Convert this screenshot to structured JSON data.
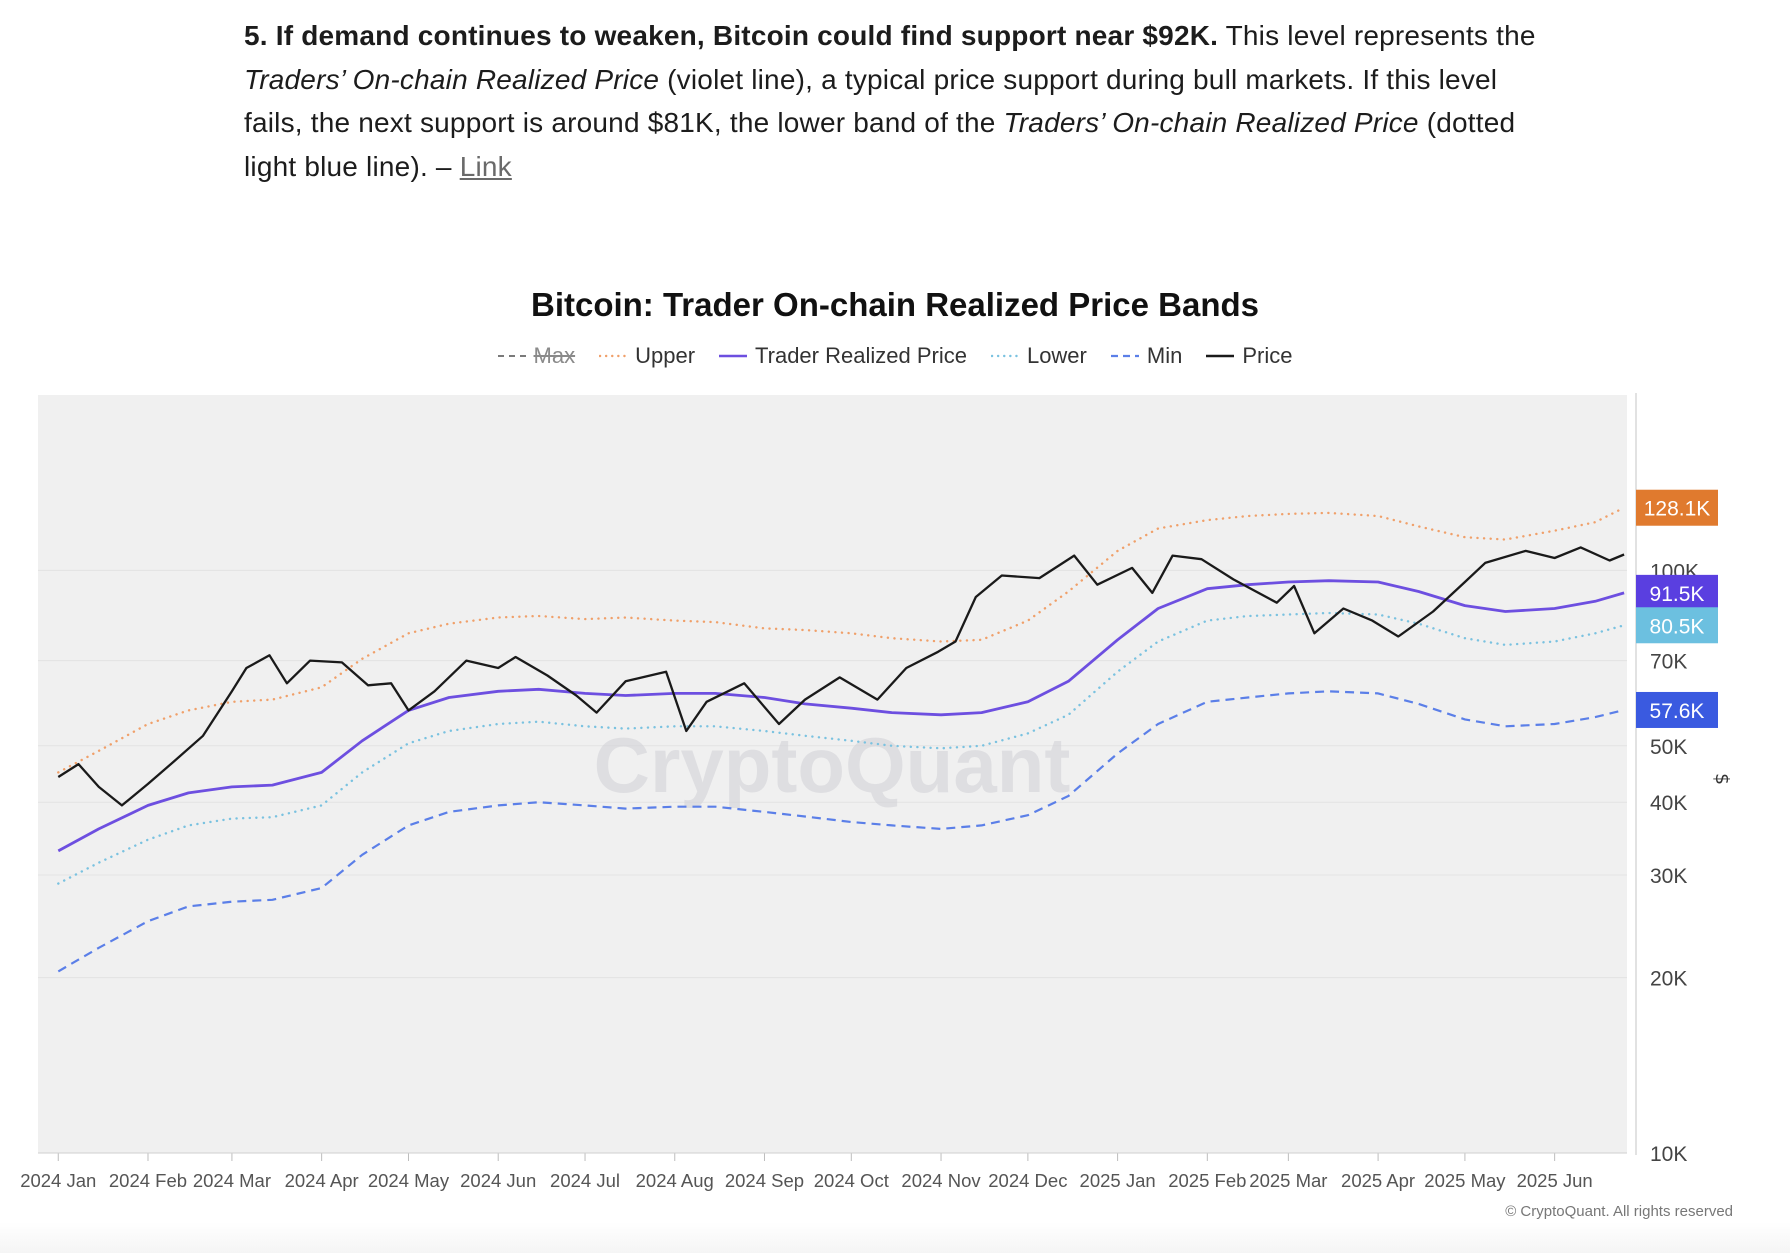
{
  "article": {
    "heading": "5. If demand continues to weaken, Bitcoin could find support near $92K.",
    "t1": " This level represents the ",
    "em1": "Traders’ On-chain Realized Price",
    "t2": " (violet line), a typical price support during bull markets. If this level fails, the next support is around $81K, the lower band of the ",
    "em2": "Traders’ On-chain Realized Price",
    "t3": " (dotted light blue line). – ",
    "link": "Link"
  },
  "chart_data": {
    "type": "line",
    "title": "Bitcoin: Trader On-chain Realized Price Bands",
    "y_scale": "log",
    "ylim": [
      10000,
      200000
    ],
    "y_axis_icon": "dollar-icon",
    "y_ticks": [
      {
        "value": 10000,
        "label": "10K"
      },
      {
        "value": 20000,
        "label": "20K"
      },
      {
        "value": 30000,
        "label": "30K"
      },
      {
        "value": 40000,
        "label": "40K"
      },
      {
        "value": 50000,
        "label": "50K"
      },
      {
        "value": 70000,
        "label": "70K"
      },
      {
        "value": 100000,
        "label": "100K"
      }
    ],
    "x_ticks": [
      "2024 Jan",
      "2024 Feb",
      "2024 Mar",
      "2024 Apr",
      "2024 May",
      "2024 Jun",
      "2024 Jul",
      "2024 Aug",
      "2024 Sep",
      "2024 Oct",
      "2024 Nov",
      "2024 Dec",
      "2025 Jan",
      "2025 Feb",
      "2025 Mar",
      "2025 Apr",
      "2025 May",
      "2025 Jun"
    ],
    "grid": true,
    "legend_position": "top-center",
    "watermark": "CryptoQuant",
    "copyright": "© CryptoQuant. All rights reserved",
    "series": [
      {
        "name": "Max",
        "color": "#7a7a7a",
        "dash": "dashed",
        "hidden": true,
        "x": [],
        "y": []
      },
      {
        "name": "Upper",
        "color": "#f0a06a",
        "dash": "dotted",
        "x": [
          "2024-01-01",
          "2024-01-15",
          "2024-02-01",
          "2024-02-15",
          "2024-03-01",
          "2024-03-15",
          "2024-04-01",
          "2024-04-15",
          "2024-05-01",
          "2024-05-15",
          "2024-06-01",
          "2024-06-15",
          "2024-07-01",
          "2024-07-15",
          "2024-08-01",
          "2024-08-15",
          "2024-09-01",
          "2024-09-15",
          "2024-10-01",
          "2024-10-15",
          "2024-11-01",
          "2024-11-15",
          "2024-12-01",
          "2024-12-15",
          "2025-01-01",
          "2025-01-15",
          "2025-02-01",
          "2025-02-15",
          "2025-03-01",
          "2025-03-15",
          "2025-04-01",
          "2025-04-15",
          "2025-05-01",
          "2025-05-15",
          "2025-06-01",
          "2025-06-15",
          "2025-06-25"
        ],
        "y": [
          45000,
          49000,
          54500,
          57500,
          59500,
          60000,
          63000,
          70500,
          78000,
          81000,
          83000,
          83500,
          82500,
          83000,
          82000,
          81500,
          79500,
          79000,
          78000,
          76500,
          75500,
          76000,
          82000,
          92000,
          108000,
          118000,
          122000,
          124000,
          125000,
          125500,
          124000,
          119000,
          114000,
          113000,
          117000,
          121000,
          128100
        ]
      },
      {
        "name": "Trader Realized Price",
        "color": "#6d4fe0",
        "dash": "solid",
        "x": [
          "2024-01-01",
          "2024-01-15",
          "2024-02-01",
          "2024-02-15",
          "2024-03-01",
          "2024-03-15",
          "2024-04-01",
          "2024-04-15",
          "2024-05-01",
          "2024-05-15",
          "2024-06-01",
          "2024-06-15",
          "2024-07-01",
          "2024-07-15",
          "2024-08-01",
          "2024-08-15",
          "2024-09-01",
          "2024-09-15",
          "2024-10-01",
          "2024-10-15",
          "2024-11-01",
          "2024-11-15",
          "2024-12-01",
          "2024-12-15",
          "2025-01-01",
          "2025-01-15",
          "2025-02-01",
          "2025-02-15",
          "2025-03-01",
          "2025-03-15",
          "2025-04-01",
          "2025-04-15",
          "2025-05-01",
          "2025-05-15",
          "2025-06-01",
          "2025-06-15",
          "2025-06-25"
        ],
        "y": [
          33000,
          36000,
          39500,
          41500,
          42500,
          42800,
          45000,
          51000,
          57500,
          60500,
          62000,
          62500,
          61500,
          61000,
          61500,
          61500,
          60500,
          59000,
          58000,
          57000,
          56500,
          57000,
          59500,
          64500,
          76000,
          86000,
          93000,
          94500,
          95500,
          96000,
          95500,
          92000,
          87000,
          85000,
          86000,
          88500,
          91500
        ]
      },
      {
        "name": "Lower",
        "color": "#7ac2e0",
        "dash": "dotted",
        "x": [
          "2024-01-01",
          "2024-01-15",
          "2024-02-01",
          "2024-02-15",
          "2024-03-01",
          "2024-03-15",
          "2024-04-01",
          "2024-04-15",
          "2024-05-01",
          "2024-05-15",
          "2024-06-01",
          "2024-06-15",
          "2024-07-01",
          "2024-07-15",
          "2024-08-01",
          "2024-08-15",
          "2024-09-01",
          "2024-09-15",
          "2024-10-01",
          "2024-10-15",
          "2024-11-01",
          "2024-11-15",
          "2024-12-01",
          "2024-12-15",
          "2025-01-01",
          "2025-01-15",
          "2025-02-01",
          "2025-02-15",
          "2025-03-01",
          "2025-03-15",
          "2025-04-01",
          "2025-04-15",
          "2025-05-01",
          "2025-05-15",
          "2025-06-01",
          "2025-06-15",
          "2025-06-25"
        ],
        "y": [
          29000,
          31500,
          34500,
          36500,
          37500,
          37700,
          39500,
          45000,
          50500,
          53000,
          54500,
          55000,
          54000,
          53500,
          54000,
          54000,
          53000,
          52000,
          51000,
          50000,
          49500,
          50000,
          52500,
          56500,
          67000,
          75500,
          82000,
          83500,
          84000,
          84500,
          84000,
          81000,
          76500,
          74500,
          75500,
          78000,
          80500
        ]
      },
      {
        "name": "Min",
        "color": "#5b7fe8",
        "dash": "dashed",
        "x": [
          "2024-01-01",
          "2024-01-15",
          "2024-02-01",
          "2024-02-15",
          "2024-03-01",
          "2024-03-15",
          "2024-04-01",
          "2024-04-15",
          "2024-05-01",
          "2024-05-15",
          "2024-06-01",
          "2024-06-15",
          "2024-07-01",
          "2024-07-15",
          "2024-08-01",
          "2024-08-15",
          "2024-09-01",
          "2024-09-15",
          "2024-10-01",
          "2024-10-15",
          "2024-11-01",
          "2024-11-15",
          "2024-12-01",
          "2024-12-15",
          "2025-01-01",
          "2025-01-15",
          "2025-02-01",
          "2025-02-15",
          "2025-03-01",
          "2025-03-15",
          "2025-04-01",
          "2025-04-15",
          "2025-05-01",
          "2025-05-15",
          "2025-06-01",
          "2025-06-15",
          "2025-06-25"
        ],
        "y": [
          20500,
          22500,
          25000,
          26500,
          27000,
          27200,
          28500,
          32500,
          36500,
          38500,
          39500,
          40000,
          39500,
          39000,
          39300,
          39300,
          38500,
          37800,
          37000,
          36500,
          36000,
          36500,
          38000,
          41000,
          48500,
          54500,
          59500,
          60500,
          61500,
          62000,
          61500,
          59000,
          55500,
          54000,
          54500,
          56000,
          57600
        ]
      },
      {
        "name": "Price",
        "color": "#1a1a1a",
        "dash": "solid",
        "x": [
          "2024-01-01",
          "2024-01-08",
          "2024-01-15",
          "2024-01-23",
          "2024-02-01",
          "2024-02-10",
          "2024-02-20",
          "2024-03-01",
          "2024-03-06",
          "2024-03-14",
          "2024-03-20",
          "2024-03-28",
          "2024-04-08",
          "2024-04-17",
          "2024-04-25",
          "2024-05-01",
          "2024-05-10",
          "2024-05-21",
          "2024-06-01",
          "2024-06-07",
          "2024-06-18",
          "2024-06-28",
          "2024-07-05",
          "2024-07-15",
          "2024-07-29",
          "2024-08-05",
          "2024-08-12",
          "2024-08-25",
          "2024-09-06",
          "2024-09-15",
          "2024-09-27",
          "2024-10-10",
          "2024-10-20",
          "2024-10-31",
          "2024-11-06",
          "2024-11-13",
          "2024-11-22",
          "2024-12-05",
          "2024-12-17",
          "2024-12-25",
          "2025-01-06",
          "2025-01-13",
          "2025-01-20",
          "2025-01-30",
          "2025-02-10",
          "2025-02-25",
          "2025-03-03",
          "2025-03-10",
          "2025-03-20",
          "2025-03-30",
          "2025-04-08",
          "2025-04-20",
          "2025-05-01",
          "2025-05-08",
          "2025-05-22",
          "2025-06-01",
          "2025-06-10",
          "2025-06-20",
          "2025-06-25"
        ],
        "y": [
          44200,
          46500,
          42500,
          39500,
          43000,
          47000,
          52000,
          62000,
          68000,
          71500,
          64000,
          70000,
          69500,
          63500,
          64000,
          57500,
          62000,
          70000,
          68000,
          71000,
          66000,
          61000,
          57000,
          64500,
          67000,
          53000,
          59500,
          64000,
          54500,
          60000,
          65500,
          60000,
          68000,
          72500,
          75500,
          90000,
          98000,
          97000,
          106000,
          94500,
          101000,
          91500,
          106000,
          104500,
          96500,
          88000,
          94000,
          78000,
          86000,
          82000,
          77000,
          85000,
          95500,
          103000,
          108000,
          105000,
          109500,
          104000,
          106500
        ]
      }
    ],
    "end_labels": [
      {
        "series": "Upper",
        "label": "128.1K",
        "value": 128100,
        "color": "#e07a2e"
      },
      {
        "series": "Trader Realized Price",
        "label": "91.5K",
        "value": 91500,
        "color": "#5a3fe0"
      },
      {
        "series": "Lower",
        "label": "80.5K",
        "value": 80500,
        "color": "#6cc0e0"
      },
      {
        "series": "Min",
        "label": "57.6K",
        "value": 57600,
        "color": "#3a5ae0"
      }
    ]
  }
}
